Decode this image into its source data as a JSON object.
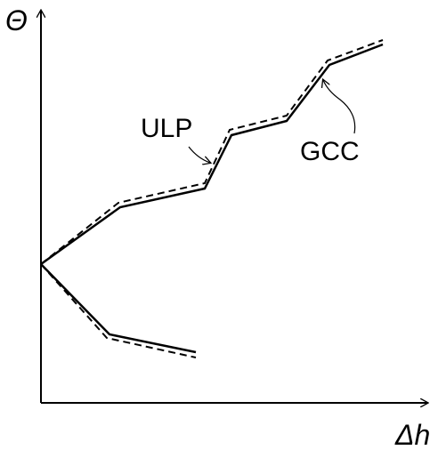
{
  "axes": {
    "y_label": "Θ",
    "x_label": "Δh"
  },
  "curves": {
    "dashed_label": "ULP",
    "solid_label": "GCC"
  }
}
